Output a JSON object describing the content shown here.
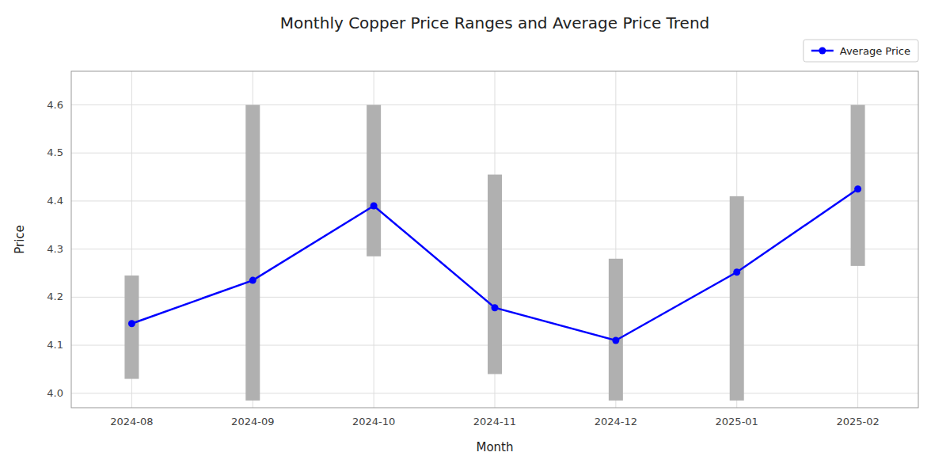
{
  "chart_data": {
    "type": "bar",
    "title": "Monthly Copper Price Ranges and Average Price Trend",
    "x_label": "Month",
    "y_label": "Price",
    "categories": [
      "2024-08",
      "2024-09",
      "2024-10",
      "2024-11",
      "2024-12",
      "2025-01",
      "2025-02"
    ],
    "series": [
      {
        "type": "bar",
        "color": "#b0b0b0",
        "low": [
          4.03,
          3.985,
          4.285,
          4.04,
          3.985,
          3.985,
          4.265
        ],
        "high": [
          4.245,
          4.6,
          4.6,
          4.455,
          4.28,
          4.41,
          4.6
        ]
      },
      {
        "name": "Average Price",
        "type": "line",
        "color": "#0000ff",
        "marker": "circle",
        "line_style": "solid",
        "values": [
          4.145,
          4.235,
          4.39,
          4.178,
          4.11,
          4.252,
          4.425
        ]
      }
    ],
    "ylim": [
      3.97,
      4.67
    ],
    "yticks": [
      {
        "value": 4,
        "label": "4.0"
      },
      4.1,
      4.2,
      4.3,
      4.4,
      4.5,
      4.6
    ],
    "grid": true,
    "legend": "upper right"
  }
}
